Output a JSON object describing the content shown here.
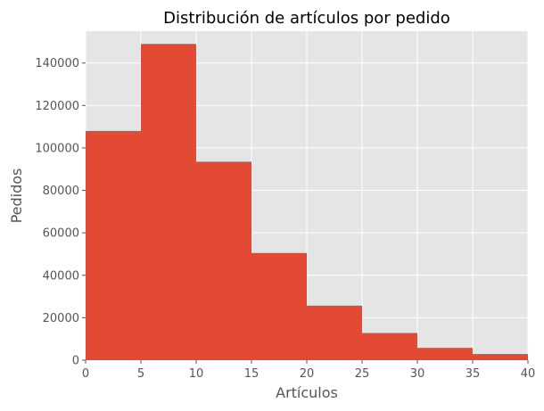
{
  "chart_data": {
    "type": "bar",
    "subtype": "histogram",
    "title": "Distribución de artículos por pedido",
    "xlabel": "Artículos",
    "ylabel": "Pedidos",
    "xlim": [
      0,
      40
    ],
    "ylim": [
      0,
      155000
    ],
    "x_ticks": [
      0,
      5,
      10,
      15,
      20,
      25,
      30,
      35,
      40
    ],
    "y_ticks": [
      0,
      20000,
      40000,
      60000,
      80000,
      100000,
      120000,
      140000
    ],
    "bins": [
      {
        "start": 0,
        "end": 5,
        "value": 108000
      },
      {
        "start": 5,
        "end": 10,
        "value": 149000
      },
      {
        "start": 10,
        "end": 15,
        "value": 93500
      },
      {
        "start": 15,
        "end": 20,
        "value": 50500
      },
      {
        "start": 20,
        "end": 25,
        "value": 25700
      },
      {
        "start": 25,
        "end": 30,
        "value": 12800
      },
      {
        "start": 30,
        "end": 35,
        "value": 5800
      },
      {
        "start": 35,
        "end": 40,
        "value": 2900
      }
    ],
    "grid": true,
    "colors": {
      "bar": "#E24A33",
      "plot_background": "#E5E5E5",
      "grid": "#FFFFFF"
    }
  }
}
